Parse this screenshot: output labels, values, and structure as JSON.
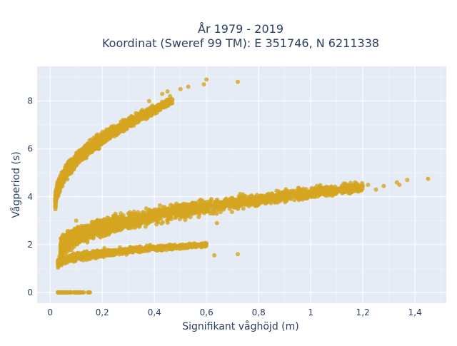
{
  "chart_data": {
    "type": "scatter",
    "title_line1": "År 1979 - 2019",
    "title_line2": "Koordinat (Sweref 99 TM): E 351746, N 6211338",
    "xlabel": "Signifikant våghöjd (m)",
    "ylabel": "Vågperiod (s)",
    "xlim": [
      -0.05,
      1.52
    ],
    "ylim": [
      -0.45,
      9.45
    ],
    "x_ticks": [
      0,
      0.2,
      0.4,
      0.6,
      0.8,
      1,
      1.2,
      1.4
    ],
    "x_tick_labels": [
      "0",
      "0,2",
      "0,4",
      "0,6",
      "0,8",
      "1",
      "1,2",
      "1,4"
    ],
    "y_ticks": [
      0,
      2,
      4,
      6,
      8
    ],
    "y_tick_labels": [
      "0",
      "2",
      "4",
      "6",
      "8"
    ],
    "grid": true,
    "series_color": "#d4a520",
    "plot_bg_color": "#e5ecf6",
    "clusters": [
      {
        "kind": "curve",
        "x_range": [
          0.02,
          0.47
        ],
        "y_start": 3.7,
        "y_end": 8.0,
        "spread": 0.45,
        "count": 1400
      },
      {
        "kind": "curve",
        "x_range": [
          0.04,
          1.2
        ],
        "y_start": 1.7,
        "y_end": 4.4,
        "spread": 0.55,
        "count": 2200
      },
      {
        "kind": "curve",
        "x_range": [
          0.03,
          0.6
        ],
        "y_start": 1.2,
        "y_end": 2.0,
        "spread": 0.25,
        "count": 900
      },
      {
        "kind": "line",
        "x_range": [
          0.03,
          0.155
        ],
        "y": 0,
        "count": 60
      }
    ],
    "points": [
      {
        "x": 0.6,
        "y": 8.9
      },
      {
        "x": 0.72,
        "y": 8.8
      },
      {
        "x": 0.59,
        "y": 8.7
      },
      {
        "x": 0.53,
        "y": 8.6
      },
      {
        "x": 0.5,
        "y": 8.5
      },
      {
        "x": 0.45,
        "y": 8.4
      },
      {
        "x": 0.43,
        "y": 8.3
      },
      {
        "x": 0.46,
        "y": 8.2
      },
      {
        "x": 0.38,
        "y": 8.0
      },
      {
        "x": 1.45,
        "y": 4.75
      },
      {
        "x": 1.37,
        "y": 4.7
      },
      {
        "x": 1.33,
        "y": 4.6
      },
      {
        "x": 1.34,
        "y": 4.5
      },
      {
        "x": 1.28,
        "y": 4.45
      },
      {
        "x": 1.25,
        "y": 4.3
      },
      {
        "x": 1.2,
        "y": 4.45
      },
      {
        "x": 1.13,
        "y": 4.4
      },
      {
        "x": 1.22,
        "y": 4.5
      },
      {
        "x": 1.17,
        "y": 4.6
      },
      {
        "x": 0.72,
        "y": 1.6
      },
      {
        "x": 0.63,
        "y": 1.55
      },
      {
        "x": 0.64,
        "y": 2.9
      },
      {
        "x": 0.1,
        "y": 3.0
      },
      {
        "x": 0.3,
        "y": 3.3
      },
      {
        "x": 0.25,
        "y": 3.2
      }
    ]
  }
}
